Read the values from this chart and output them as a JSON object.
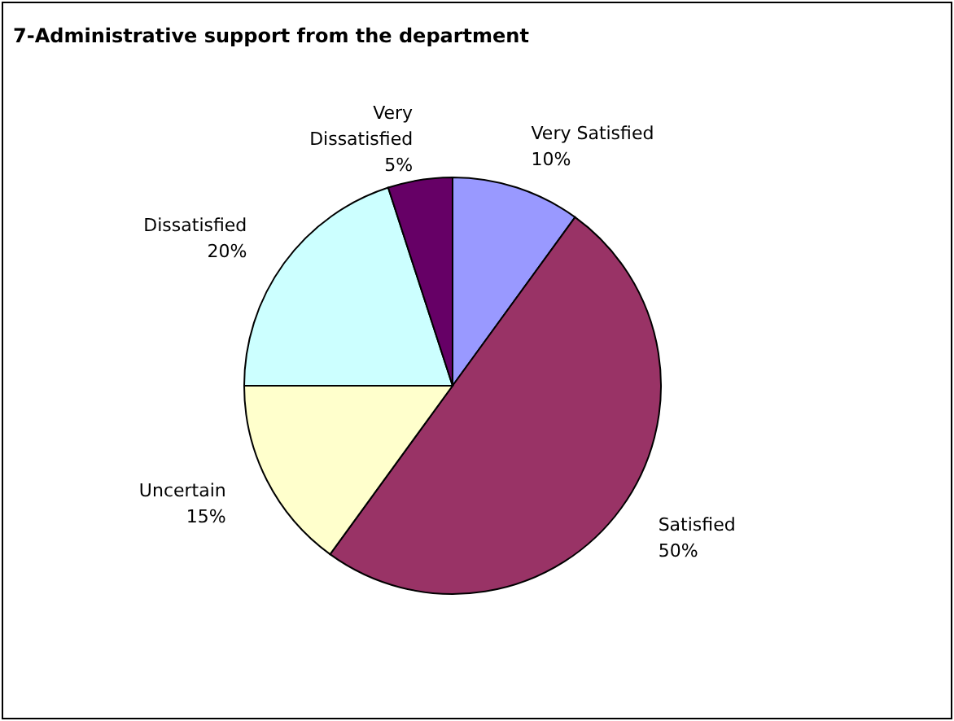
{
  "chart_data": {
    "type": "pie",
    "title": "7-Administrative support from the department",
    "categories": [
      "Very Satisfied",
      "Satisfied",
      "Uncertain",
      "Dissatisfied",
      "Very Dissatisfied"
    ],
    "values": [
      10,
      50,
      15,
      20,
      5
    ],
    "value_labels": [
      "10%",
      "50%",
      "15%",
      "20%",
      "5%"
    ],
    "colors": [
      "#9999ff",
      "#993366",
      "#ffffcc",
      "#ccffff",
      "#660066"
    ]
  }
}
